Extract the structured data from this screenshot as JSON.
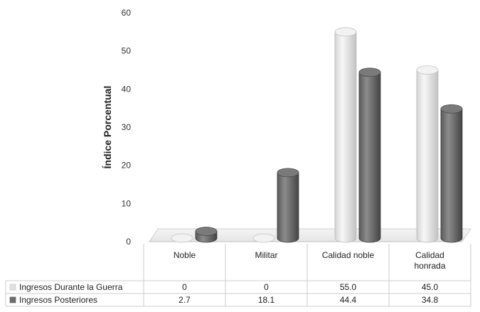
{
  "chart_data": {
    "type": "bar",
    "title": "",
    "xlabel": "",
    "ylabel": "Índice Porcentual",
    "ylim": [
      0,
      60
    ],
    "y_ticks": [
      0,
      10,
      20,
      30,
      40,
      50,
      60
    ],
    "categories": [
      "Noble",
      "Militar",
      "Calidad noble",
      "Calidad honrada"
    ],
    "series": [
      {
        "name": "Ingresos Durante la Guerra",
        "values": [
          0,
          0,
          55.0,
          45.0
        ],
        "labels": [
          "0",
          "0",
          "55.0",
          "45.0"
        ],
        "color": "#e2e2e2"
      },
      {
        "name": "Ingresos Posteriores",
        "values": [
          2.7,
          18.1,
          44.4,
          34.8
        ],
        "labels": [
          "2.7",
          "18.1",
          "44.4",
          "34.8"
        ],
        "color": "#6e6e6e"
      }
    ],
    "style": "3d-cylinder-with-data-table",
    "grid": false
  }
}
